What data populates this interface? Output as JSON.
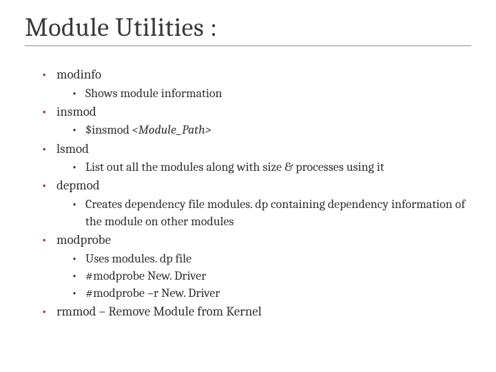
{
  "title": "Module Utilities :",
  "colors": {
    "background": "#ffffff",
    "title_color": "#3a3a3a",
    "body_color": "#333333",
    "bullet_lvl1": "#9e2b2b",
    "bullet_lvl2": "#333333",
    "rule_color": "#8a8a8a"
  },
  "typography": {
    "title_fontsize": 38,
    "lvl1_fontsize": 19,
    "lvl2_fontsize": 18,
    "font_family": "Cambria"
  },
  "items": {
    "i0": {
      "label": "modinfo",
      "sub": {
        "s0": "Shows module information"
      }
    },
    "i1": {
      "label": "insmod",
      "sub": {
        "s0_pre": "$insmod ",
        "s0_ital": "<Module_Path>"
      }
    },
    "i2": {
      "label": "lsmod",
      "sub": {
        "s0": "List out all the modules along with size & processes using it"
      }
    },
    "i3": {
      "label": "depmod",
      "sub": {
        "s0": "Creates dependency file modules. dp containing dependency information of the module on other modules"
      }
    },
    "i4": {
      "label": "modprobe",
      "sub": {
        "s0": "Uses modules. dp file",
        "s1": "#modprobe New. Driver",
        "s2": "#modprobe –r New. Driver"
      }
    },
    "i5": {
      "label": "rmmod – Remove Module from Kernel"
    }
  }
}
